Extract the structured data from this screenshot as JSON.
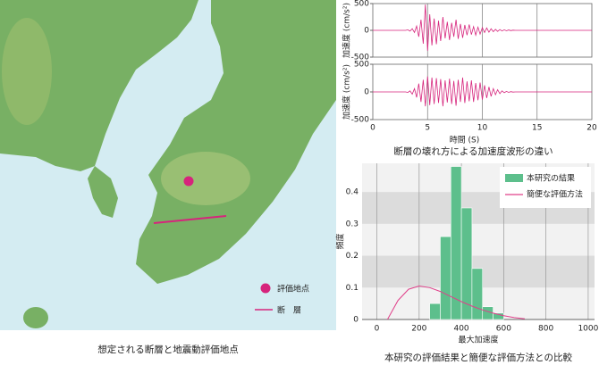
{
  "map": {
    "legend": [
      "評価地点",
      "断　層"
    ],
    "caption": "想定される断層と地震動評価地点"
  },
  "chart_data": [
    {
      "type": "line",
      "ylabel": "加速度 (cm/s²)",
      "color": "#d6247c",
      "ylim": [
        -500,
        500
      ],
      "yticks": [
        500,
        0,
        -500
      ],
      "xlim": [
        0,
        20
      ],
      "xticks": [
        0,
        5,
        10,
        15,
        20
      ],
      "show_xtick_labels": false,
      "grid": true,
      "x": [
        0,
        3,
        3.2,
        3.4,
        3.6,
        3.8,
        4,
        4.2,
        4.4,
        4.6,
        4.8,
        5,
        5.2,
        5.4,
        5.6,
        5.8,
        6,
        6.2,
        6.4,
        6.6,
        6.8,
        7,
        7.2,
        7.4,
        7.6,
        7.8,
        8,
        8.2,
        8.4,
        8.6,
        8.8,
        9,
        9.2,
        9.4,
        9.6,
        9.8,
        10,
        10.2,
        10.4,
        10.6,
        10.8,
        11,
        11.2,
        11.4,
        11.6,
        11.8,
        12,
        12.2,
        12.4,
        12.6,
        12.8,
        13,
        20
      ],
      "values": [
        0,
        0,
        10,
        -15,
        30,
        -40,
        80,
        -120,
        200,
        -250,
        480,
        -380,
        300,
        -280,
        220,
        -260,
        180,
        -200,
        250,
        -150,
        160,
        -180,
        140,
        -120,
        200,
        -160,
        120,
        -140,
        100,
        -90,
        110,
        -80,
        70,
        -90,
        60,
        -70,
        50,
        -40,
        45,
        -35,
        30,
        -25,
        20,
        -20,
        15,
        -12,
        10,
        -8,
        6,
        -5,
        4,
        0,
        0
      ]
    },
    {
      "type": "line",
      "ylabel": "加速度 (cm/s²)",
      "xlabel": "時間 (S)",
      "caption": "断層の壊れ方による加速度波形の違い",
      "color": "#d6247c",
      "ylim": [
        -500,
        500
      ],
      "yticks": [
        500,
        0,
        -500
      ],
      "xlim": [
        0,
        20
      ],
      "xticks": [
        0,
        5,
        10,
        15,
        20
      ],
      "show_xtick_labels": true,
      "grid": true,
      "x": [
        0,
        3,
        3.2,
        3.4,
        3.6,
        3.8,
        4,
        4.2,
        4.4,
        4.6,
        4.8,
        5,
        5.2,
        5.4,
        5.6,
        5.8,
        6,
        6.2,
        6.4,
        6.6,
        6.8,
        7,
        7.2,
        7.4,
        7.6,
        7.8,
        8,
        8.2,
        8.4,
        8.6,
        8.8,
        9,
        9.2,
        9.4,
        9.6,
        9.8,
        10,
        10.2,
        10.4,
        10.6,
        10.8,
        11,
        11.2,
        11.4,
        11.6,
        11.8,
        12,
        12.2,
        12.4,
        12.6,
        12.8,
        13,
        20
      ],
      "values": [
        0,
        0,
        -10,
        20,
        -40,
        60,
        -100,
        150,
        -180,
        220,
        -260,
        280,
        -240,
        260,
        -220,
        250,
        -200,
        230,
        -260,
        210,
        -190,
        240,
        -220,
        200,
        -250,
        220,
        -180,
        260,
        -200,
        190,
        -170,
        210,
        -180,
        160,
        -150,
        170,
        -140,
        120,
        -110,
        90,
        -80,
        60,
        -50,
        40,
        -30,
        20,
        -15,
        10,
        -8,
        5,
        -3,
        0,
        0
      ]
    },
    {
      "type": "histogram",
      "ylabel": "頻度",
      "xlabel": "最大加速度",
      "caption": "本研究の評価結果と簡便な評価方法との比較",
      "name": "本研究の結果",
      "color": "#5dbf8c",
      "bins": [
        250,
        300,
        350,
        400,
        450,
        500,
        550,
        600
      ],
      "values": [
        0.05,
        0.26,
        0.48,
        0.35,
        0.16,
        0.04,
        0.02
      ],
      "series": [
        {
          "name": "簡便な評価方法",
          "color": "#e0408a",
          "x": [
            50,
            100,
            150,
            200,
            250,
            300,
            350,
            400,
            450,
            500,
            550,
            600,
            650,
            700
          ],
          "values": [
            0,
            0.06,
            0.095,
            0.105,
            0.1,
            0.088,
            0.072,
            0.056,
            0.042,
            0.03,
            0.02,
            0.012,
            0.006,
            0.002
          ]
        }
      ],
      "xlim": [
        -70,
        1030
      ],
      "xticks": [
        0,
        200,
        400,
        600,
        800,
        1000
      ],
      "ylim": [
        0,
        0.49
      ],
      "yticks": [
        0,
        0.1,
        0.2,
        0.3,
        0.4
      ],
      "grid": true,
      "legend": "upper right"
    }
  ]
}
